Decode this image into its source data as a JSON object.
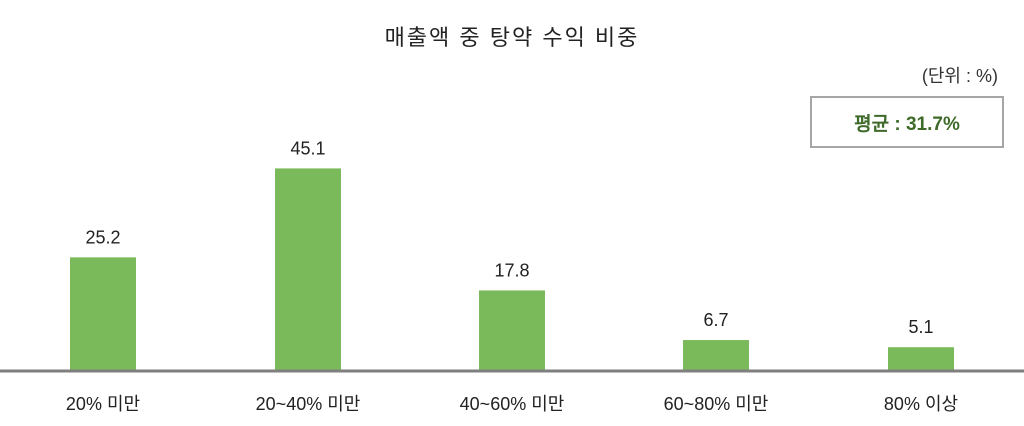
{
  "chart_data": {
    "type": "bar",
    "title": "매출액 중 탕약 수익 비중",
    "unit_label": "(단위 : %)",
    "annotation": "평균 : 31.7%",
    "categories": [
      "20% 미만",
      "20~40% 미만",
      "40~60% 미만",
      "60~80% 미만",
      "80% 이상"
    ],
    "values": [
      25.2,
      45.1,
      17.8,
      6.7,
      5.1
    ],
    "data_labels": [
      "25.2",
      "45.1",
      "17.8",
      "6.7",
      "5.1"
    ],
    "ylim": [
      0,
      50
    ],
    "grid": false,
    "bar_color": "#7aba5a",
    "axis_color": "#7f7f7f",
    "annotation_color": "#3e6b2a"
  }
}
